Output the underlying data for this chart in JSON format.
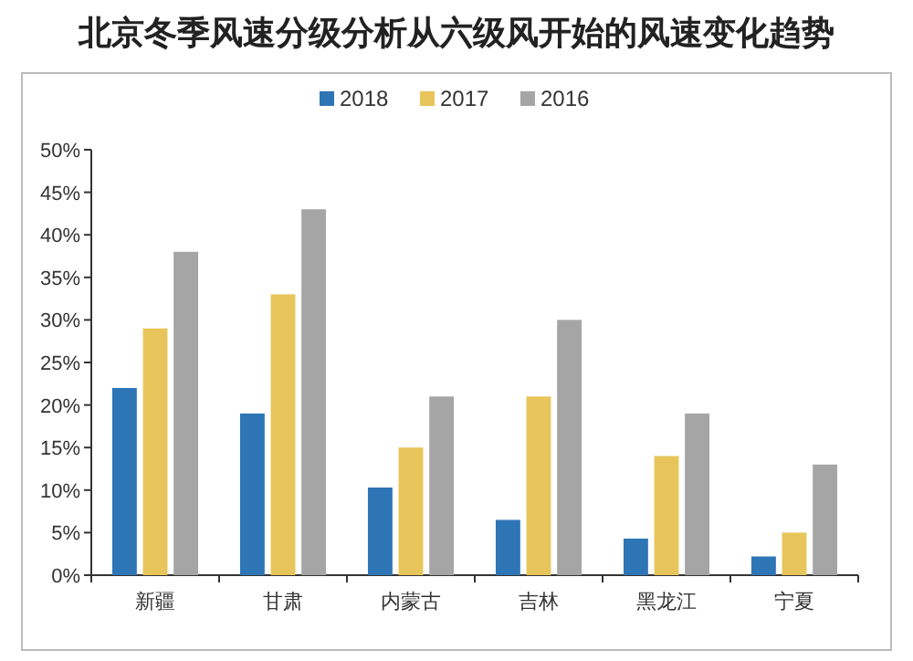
{
  "chart_data": {
    "type": "bar",
    "title": "北京冬季风速分级分析从六级风开始的风速变化趋势",
    "categories": [
      "新疆",
      "甘肃",
      "内蒙古",
      "吉林",
      "黑龙江",
      "宁夏"
    ],
    "series": [
      {
        "name": "2018",
        "color": "#2e75b6",
        "values": [
          22,
          19,
          10.3,
          6.5,
          4.3,
          2.2
        ]
      },
      {
        "name": "2017",
        "color": "#e8c55a",
        "values": [
          29,
          33,
          15,
          21,
          14,
          5
        ]
      },
      {
        "name": "2016",
        "color": "#a5a5a5",
        "values": [
          38,
          43,
          21,
          30,
          19,
          13
        ]
      }
    ],
    "ylim": [
      0,
      50
    ],
    "yticks": [
      {
        "value": 0,
        "label": "0%"
      },
      {
        "value": 5,
        "label": "5%"
      },
      {
        "value": 10,
        "label": "10%"
      },
      {
        "value": 15,
        "label": "15%"
      },
      {
        "value": 20,
        "label": "20%"
      },
      {
        "value": 25,
        "label": "25%"
      },
      {
        "value": 30,
        "label": "30%"
      },
      {
        "value": 35,
        "label": "35%"
      },
      {
        "value": 40,
        "label": "40%"
      },
      {
        "value": 45,
        "label": "45%"
      },
      {
        "value": 50,
        "label": "50%"
      }
    ],
    "legend": "top",
    "grid": false
  }
}
